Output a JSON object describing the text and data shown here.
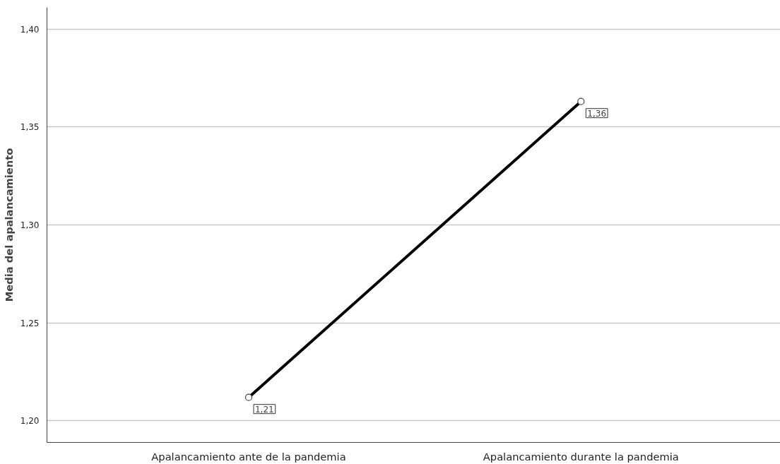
{
  "chart_data": {
    "type": "line",
    "ylabel": "Media del apalancamiento",
    "categories": [
      "Apalancamiento ante de la pandemia",
      "Apalancamiento durante la pandemia"
    ],
    "series": [
      {
        "color": "#000000",
        "values": [
          1.212,
          1.363
        ],
        "value_labels": [
          "1,21",
          "1,36"
        ]
      }
    ],
    "ylim": [
      1.189,
      1.411
    ],
    "yticks": [
      {
        "value": 1.2,
        "label": "1,20"
      },
      {
        "value": 1.25,
        "label": "1,25"
      },
      {
        "value": 1.3,
        "label": "1,30"
      },
      {
        "value": 1.35,
        "label": "1,35"
      },
      {
        "value": 1.4,
        "label": "1,40"
      }
    ],
    "grid": "y",
    "marker": "circle",
    "line_style": "solid"
  }
}
